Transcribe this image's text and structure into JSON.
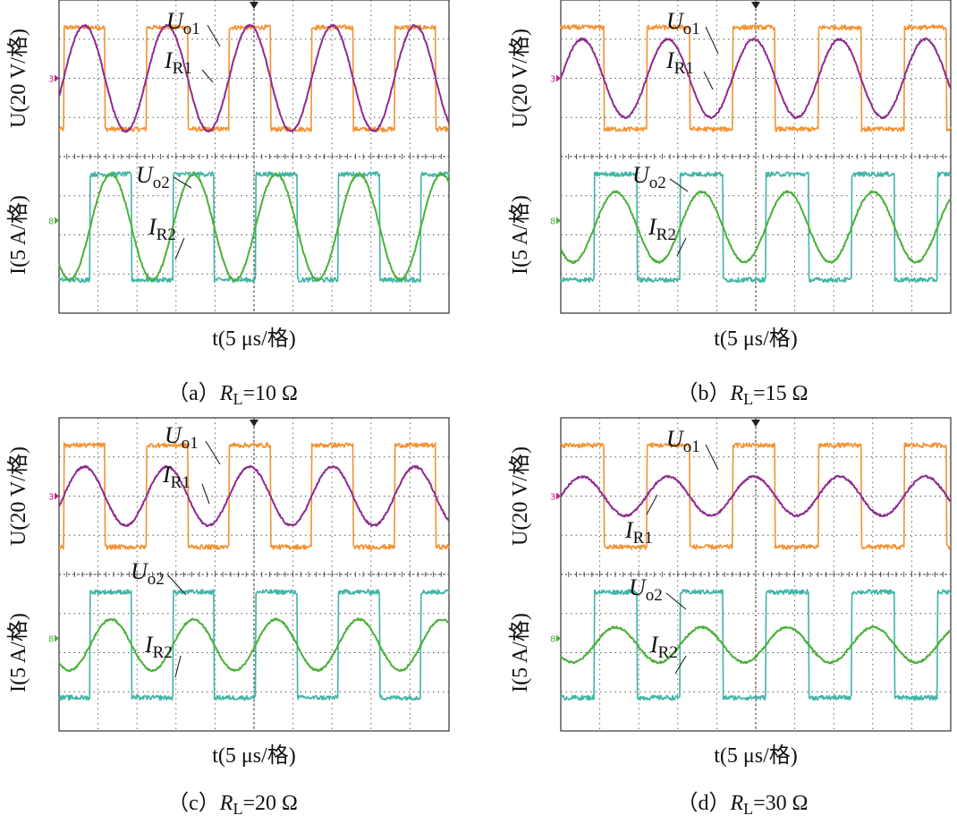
{
  "figure": {
    "colors": {
      "uo1": "#f39233",
      "ir1": "#8e2b8f",
      "uo2": "#3fb5a6",
      "ir2": "#4caf3a",
      "grid": "#555555",
      "marker": "#c0208a"
    },
    "scope": {
      "u_marker": "3",
      "i_marker": "8"
    }
  },
  "chart_data": [
    {
      "type": "line",
      "caption_prefix": "（a）",
      "rl_symbol": "R",
      "rl_sub": "L",
      "rl_value": "=10 Ω",
      "ylabel_top": "U(20 V/格)",
      "ylabel_bottom": "I(5 A/格)",
      "xlabel": "t(5 μs/格)",
      "x_div_us": 5,
      "u_div_V": 20,
      "i_div_A": 5,
      "xlim_us": [
        0,
        50
      ],
      "series": [
        {
          "name": "U",
          "sub": "o1",
          "kind": "square",
          "period_us": 10.6,
          "amplitude": 1.3,
          "offset_div": 2.0,
          "phase_us": 0.6,
          "level_unit": "V",
          "amplitude_value": 52
        },
        {
          "name": "I",
          "sub": "R1",
          "kind": "sine",
          "period_us": 10.6,
          "amplitude": 1.35,
          "offset_div": 2.0,
          "phase_us": 0.6,
          "level_unit": "A",
          "amplitude_value": 6.8
        },
        {
          "name": "U",
          "sub": "o2",
          "kind": "square",
          "period_us": 10.6,
          "amplitude": 1.35,
          "offset_div": -1.8,
          "phase_us": 4.0,
          "level_unit": "V",
          "amplitude_value": 54
        },
        {
          "name": "I",
          "sub": "R2",
          "kind": "sine",
          "period_us": 10.6,
          "amplitude": 1.35,
          "offset_div": -1.8,
          "phase_us": 4.0,
          "level_unit": "A",
          "amplitude_value": 6.8
        }
      ]
    },
    {
      "type": "line",
      "caption_prefix": "（b）",
      "rl_symbol": "R",
      "rl_sub": "L",
      "rl_value": "=15 Ω",
      "ylabel_top": "U(20 V/格)",
      "ylabel_bottom": "I(5 A/格)",
      "xlabel": "t(5 μs/格)",
      "x_div_us": 5,
      "u_div_V": 20,
      "i_div_A": 5,
      "xlim_us": [
        0,
        50
      ],
      "series": [
        {
          "name": "U",
          "sub": "o1",
          "kind": "square",
          "period_us": 11.0,
          "amplitude": 1.3,
          "offset_div": 2.0,
          "phase_us": 0.0,
          "level_unit": "V",
          "amplitude_value": 52
        },
        {
          "name": "I",
          "sub": "R1",
          "kind": "sine",
          "period_us": 11.0,
          "amplitude": 1.0,
          "offset_div": 2.0,
          "phase_us": 0.0,
          "level_unit": "A",
          "amplitude_value": 5.0
        },
        {
          "name": "U",
          "sub": "o2",
          "kind": "square",
          "period_us": 11.0,
          "amplitude": 1.35,
          "offset_div": -1.8,
          "phase_us": 4.3,
          "level_unit": "V",
          "amplitude_value": 54
        },
        {
          "name": "I",
          "sub": "R2",
          "kind": "sine",
          "period_us": 11.0,
          "amplitude": 0.9,
          "offset_div": -1.8,
          "phase_us": 4.3,
          "level_unit": "A",
          "amplitude_value": 4.5
        }
      ]
    },
    {
      "type": "line",
      "caption_prefix": "（c）",
      "rl_symbol": "R",
      "rl_sub": "L",
      "rl_value": "=20 Ω",
      "ylabel_top": "U(20 V/格)",
      "ylabel_bottom": "I(5 A/格)",
      "xlabel": "t(5 μs/格)",
      "x_div_us": 5,
      "u_div_V": 20,
      "i_div_A": 5,
      "xlim_us": [
        0,
        50
      ],
      "series": [
        {
          "name": "U",
          "sub": "o1",
          "kind": "square",
          "period_us": 10.6,
          "amplitude": 1.3,
          "offset_div": 2.0,
          "phase_us": 0.6,
          "level_unit": "V",
          "amplitude_value": 52
        },
        {
          "name": "I",
          "sub": "R1",
          "kind": "sine",
          "period_us": 10.6,
          "amplitude": 0.75,
          "offset_div": 2.0,
          "phase_us": 0.6,
          "level_unit": "A",
          "amplitude_value": 3.75
        },
        {
          "name": "U",
          "sub": "o2",
          "kind": "square",
          "period_us": 10.6,
          "amplitude": 1.35,
          "offset_div": -1.8,
          "phase_us": 4.0,
          "level_unit": "V",
          "amplitude_value": 54
        },
        {
          "name": "I",
          "sub": "R2",
          "kind": "sine",
          "period_us": 10.6,
          "amplitude": 0.65,
          "offset_div": -1.8,
          "phase_us": 4.0,
          "level_unit": "A",
          "amplitude_value": 3.25
        }
      ]
    },
    {
      "type": "line",
      "caption_prefix": "（d）",
      "rl_symbol": "R",
      "rl_sub": "L",
      "rl_value": "=30 Ω",
      "ylabel_top": "U(20 V/格)",
      "ylabel_bottom": "I(5 A/格)",
      "xlabel": "t(5 μs/格)",
      "x_div_us": 5,
      "u_div_V": 20,
      "i_div_A": 5,
      "xlim_us": [
        0,
        50
      ],
      "series": [
        {
          "name": "U",
          "sub": "o1",
          "kind": "square",
          "period_us": 11.0,
          "amplitude": 1.3,
          "offset_div": 2.0,
          "phase_us": 0.0,
          "level_unit": "V",
          "amplitude_value": 52
        },
        {
          "name": "I",
          "sub": "R1",
          "kind": "sine",
          "period_us": 11.0,
          "amplitude": 0.5,
          "offset_div": 2.0,
          "phase_us": 0.0,
          "level_unit": "A",
          "amplitude_value": 2.5
        },
        {
          "name": "U",
          "sub": "o2",
          "kind": "square",
          "period_us": 11.0,
          "amplitude": 1.35,
          "offset_div": -1.8,
          "phase_us": 4.3,
          "level_unit": "V",
          "amplitude_value": 54
        },
        {
          "name": "I",
          "sub": "R2",
          "kind": "sine",
          "period_us": 11.0,
          "amplitude": 0.45,
          "offset_div": -1.8,
          "phase_us": 4.3,
          "level_unit": "A",
          "amplitude_value": 2.25
        }
      ]
    }
  ]
}
